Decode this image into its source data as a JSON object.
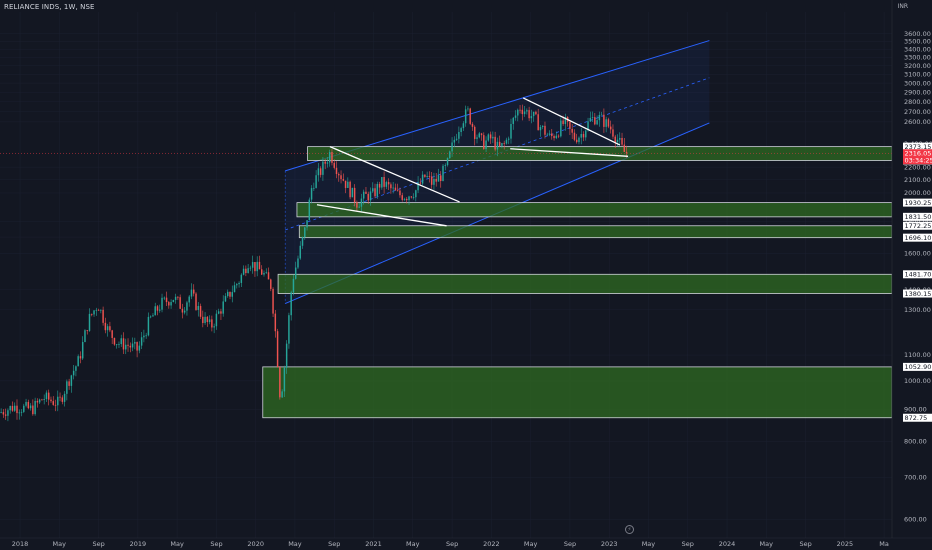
{
  "header": {
    "symbol_title": "RELIANCE INDS, 1W, NSE",
    "currency": "INR"
  },
  "colors": {
    "background": "#131722",
    "up": "#26a69a",
    "down": "#ef5350",
    "zone_fill": "#2f6b22",
    "zone_border": "#d1d4dc",
    "channel": "#2962ff",
    "trendline": "#ffffff",
    "current_price_tag": "#f23645"
  },
  "icons": {
    "goto_realtime": "lightning-icon"
  },
  "chart_data": {
    "type": "candlestick",
    "x_axis": {
      "labels": [
        "2018",
        "May",
        "Sep",
        "2019",
        "May",
        "Sep",
        "2020",
        "May",
        "Sep",
        "2021",
        "May",
        "Sep",
        "2022",
        "May",
        "Sep",
        "2023",
        "May",
        "Sep",
        "2024",
        "May",
        "Sep",
        "2025",
        "Ma"
      ],
      "label_dates": [
        2018.0,
        2018.333,
        2018.667,
        2019.0,
        2019.333,
        2019.667,
        2020.0,
        2020.333,
        2020.667,
        2021.0,
        2021.333,
        2021.667,
        2022.0,
        2022.333,
        2022.667,
        2023.0,
        2023.333,
        2023.667,
        2024.0,
        2024.333,
        2024.667,
        2025.0,
        2025.333
      ],
      "range": [
        2017.83,
        2025.4
      ]
    },
    "y_axis": {
      "scale": "log",
      "range": [
        560,
        3900
      ],
      "ticks": [
        "600.00",
        "700.00",
        "800.00",
        "900.00",
        "1000.00",
        "1100.00",
        "1300.00",
        "1400.00",
        "1600.00",
        "1700.00",
        "1800.00",
        "2000.00",
        "2100.00",
        "2200.00",
        "2600.00",
        "2700.00",
        "2800.00",
        "2900.00",
        "3000.00",
        "3100.00",
        "3200.00",
        "3300.00",
        "3400.00",
        "3500.00",
        "3600.00"
      ],
      "tick_values": [
        600,
        700,
        800,
        900,
        1000,
        1100,
        1300,
        1400,
        1600,
        1700,
        1800,
        2000,
        2100,
        2200,
        2600,
        2700,
        2800,
        2900,
        3000,
        3100,
        3200,
        3300,
        3400,
        3500,
        3600
      ],
      "partial_labels": [
        "2,400.00"
      ],
      "partial_label_values": [
        2400
      ]
    },
    "current_price": {
      "value": 2316.05,
      "label": "2316.05",
      "countdown": "03:34:25"
    },
    "price_levels": [
      {
        "value": 2373.15,
        "label": "2373.15"
      },
      {
        "value": 2254.65,
        "label": "2254.65"
      },
      {
        "value": 1930.25,
        "label": "1930.25"
      },
      {
        "value": 1831.5,
        "label": "1831.50"
      },
      {
        "value": 1772.25,
        "label": "1772.25"
      },
      {
        "value": 1696.1,
        "label": "1696.10"
      },
      {
        "value": 1481.7,
        "label": "1481.70"
      },
      {
        "value": 1380.15,
        "label": "1380.15"
      },
      {
        "value": 1052.9,
        "label": "1052.90"
      },
      {
        "value": 872.75,
        "label": "872.75"
      }
    ],
    "zones": [
      {
        "from": 2254.65,
        "to": 2373.15,
        "start": 2020.44
      },
      {
        "from": 1831.5,
        "to": 1930.25,
        "start": 2020.35
      },
      {
        "from": 1696.1,
        "to": 1772.25,
        "start": 2020.37
      },
      {
        "from": 1380.15,
        "to": 1481.7,
        "start": 2020.19
      },
      {
        "from": 872.75,
        "to": 1052.9,
        "start": 2020.06
      }
    ],
    "channel": {
      "upper": [
        [
          2020.25,
          2170
        ],
        [
          2023.85,
          3510
        ]
      ],
      "median": [
        [
          2020.25,
          1745
        ],
        [
          2023.85,
          3060
        ]
      ],
      "lower": [
        [
          2020.25,
          1330
        ],
        [
          2023.85,
          2590
        ]
      ]
    },
    "trendlines": [
      [
        [
          2020.63,
          2373
        ],
        [
          2021.73,
          1935
        ]
      ],
      [
        [
          2020.52,
          1915
        ],
        [
          2021.62,
          1772
        ]
      ],
      [
        [
          2022.27,
          2840
        ],
        [
          2023.09,
          2388
        ]
      ],
      [
        [
          2022.16,
          2355
        ],
        [
          2023.16,
          2290
        ]
      ]
    ],
    "weekly_close_path": [
      [
        2017.83,
        890
      ],
      [
        2017.95,
        910
      ],
      [
        2018.1,
        900
      ],
      [
        2018.2,
        940
      ],
      [
        2018.33,
        920
      ],
      [
        2018.42,
        1010
      ],
      [
        2018.5,
        1080
      ],
      [
        2018.58,
        1250
      ],
      [
        2018.66,
        1330
      ],
      [
        2018.75,
        1200
      ],
      [
        2018.83,
        1150
      ],
      [
        2018.92,
        1140
      ],
      [
        2019.0,
        1120
      ],
      [
        2019.1,
        1250
      ],
      [
        2019.2,
        1330
      ],
      [
        2019.3,
        1360
      ],
      [
        2019.38,
        1310
      ],
      [
        2019.45,
        1380
      ],
      [
        2019.55,
        1260
      ],
      [
        2019.62,
        1220
      ],
      [
        2019.7,
        1300
      ],
      [
        2019.78,
        1380
      ],
      [
        2019.86,
        1450
      ],
      [
        2019.94,
        1560
      ],
      [
        2020.0,
        1520
      ],
      [
        2020.06,
        1490
      ],
      [
        2020.13,
        1420
      ],
      [
        2020.17,
        1180
      ],
      [
        2020.21,
        930
      ],
      [
        2020.25,
        1080
      ],
      [
        2020.31,
        1450
      ],
      [
        2020.37,
        1600
      ],
      [
        2020.42,
        1750
      ],
      [
        2020.48,
        2070
      ],
      [
        2020.56,
        2180
      ],
      [
        2020.63,
        2320
      ],
      [
        2020.7,
        2170
      ],
      [
        2020.78,
        2050
      ],
      [
        2020.86,
        1930
      ],
      [
        2020.94,
        1980
      ],
      [
        2021.0,
        1990
      ],
      [
        2021.06,
        2080
      ],
      [
        2021.12,
        2050
      ],
      [
        2021.2,
        1990
      ],
      [
        2021.28,
        1980
      ],
      [
        2021.36,
        2020
      ],
      [
        2021.44,
        2130
      ],
      [
        2021.5,
        2070
      ],
      [
        2021.56,
        2120
      ],
      [
        2021.62,
        2200
      ],
      [
        2021.68,
        2420
      ],
      [
        2021.74,
        2600
      ],
      [
        2021.8,
        2700
      ],
      [
        2021.86,
        2500
      ],
      [
        2021.93,
        2400
      ],
      [
        2022.0,
        2450
      ],
      [
        2022.06,
        2350
      ],
      [
        2022.12,
        2400
      ],
      [
        2022.18,
        2600
      ],
      [
        2022.24,
        2750
      ],
      [
        2022.3,
        2700
      ],
      [
        2022.36,
        2640
      ],
      [
        2022.42,
        2550
      ],
      [
        2022.5,
        2450
      ],
      [
        2022.56,
        2510
      ],
      [
        2022.62,
        2600
      ],
      [
        2022.7,
        2450
      ],
      [
        2022.76,
        2480
      ],
      [
        2022.84,
        2620
      ],
      [
        2022.9,
        2650
      ],
      [
        2022.96,
        2600
      ],
      [
        2023.02,
        2530
      ],
      [
        2023.08,
        2420
      ],
      [
        2023.12,
        2330
      ],
      [
        2023.15,
        2316
      ]
    ]
  }
}
